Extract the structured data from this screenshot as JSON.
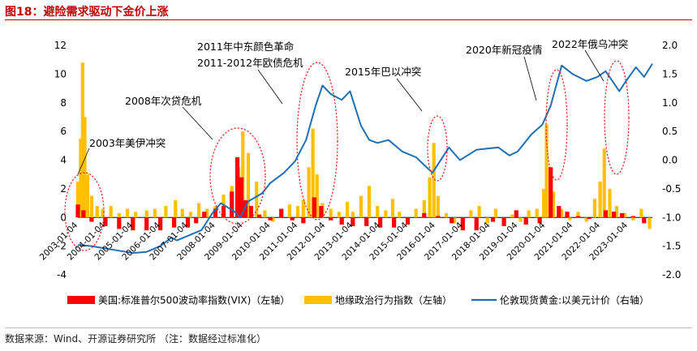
{
  "figure_title": "图18：避险需求驱动下金价上涨",
  "source_note": "数据来源：Wind、开源证券研究所 （注：数据经过标准化）",
  "colors": {
    "vix": "#ff0000",
    "gpr": "#ffc000",
    "gold": "#1f6fb4",
    "annotation_ellipse": "#e0201c",
    "title": "#c00000"
  },
  "chart_data": {
    "type": "bar+line",
    "title": "避险需求驱动下金价上涨",
    "left_axis": {
      "range": [
        -4,
        12
      ],
      "ticks": [
        12,
        10,
        8,
        6,
        4,
        2,
        0,
        -2,
        -4
      ]
    },
    "right_axis": {
      "range": [
        -2.0,
        2.0
      ],
      "ticks": [
        "2.0",
        "1.5",
        "1.0",
        "0.5",
        "0.0",
        "-0.5",
        "-1.0",
        "-1.5",
        "-2.0"
      ]
    },
    "x_range": [
      2003.0,
      2023.9
    ],
    "x_tick_labels": [
      "2003-01-04",
      "2004-01-04",
      "2005-01-04",
      "2006-01-04",
      "2007-01-04",
      "2008-01-04",
      "2009-01-04",
      "2010-01-04",
      "2011-01-04",
      "2012-01-04",
      "2013-01-04",
      "2014-01-04",
      "2015-01-04",
      "2016-01-04",
      "2017-01-04",
      "2018-01-04",
      "2019-01-04",
      "2020-01-04",
      "2021-01-04",
      "2022-01-04",
      "2023-01-04"
    ],
    "legend": [
      {
        "key": "vix",
        "label": "美国:标准普尔500波动率指数(VIX)（左轴）"
      },
      {
        "key": "gpr",
        "label": "地缘政治行为指数（左轴）"
      },
      {
        "key": "gold",
        "label": "伦敦现货黄金:以美元计价（右轴）"
      }
    ],
    "series": [
      {
        "name": "伦敦现货黄金:以美元计价（右轴）",
        "axis": "right",
        "style": "line",
        "x": [
          2003.0,
          2003.5,
          2004.0,
          2004.5,
          2005.0,
          2005.5,
          2006.0,
          2006.4,
          2006.6,
          2007.0,
          2007.5,
          2007.9,
          2008.2,
          2008.7,
          2008.9,
          2009.2,
          2009.7,
          2010.0,
          2010.5,
          2010.9,
          2011.3,
          2011.65,
          2011.9,
          2012.2,
          2012.6,
          2012.9,
          2013.3,
          2013.6,
          2013.9,
          2014.3,
          2014.8,
          2015.3,
          2015.9,
          2016.5,
          2016.9,
          2017.5,
          2017.9,
          2018.3,
          2018.7,
          2019.0,
          2019.5,
          2019.9,
          2020.2,
          2020.6,
          2021.0,
          2021.5,
          2021.9,
          2022.2,
          2022.7,
          2022.9,
          2023.3,
          2023.6,
          2023.9
        ],
        "values": [
          -1.48,
          -1.5,
          -1.54,
          -1.58,
          -1.62,
          -1.6,
          -1.5,
          -1.35,
          -1.4,
          -1.32,
          -1.22,
          -0.92,
          -0.75,
          -0.9,
          -1.0,
          -0.72,
          -0.58,
          -0.4,
          -0.22,
          -0.02,
          0.35,
          0.95,
          1.3,
          1.15,
          1.05,
          1.2,
          0.6,
          0.35,
          0.3,
          0.35,
          0.15,
          0.05,
          -0.22,
          0.22,
          0.0,
          0.18,
          0.2,
          0.22,
          0.08,
          0.15,
          0.45,
          0.62,
          0.95,
          1.65,
          1.5,
          1.38,
          1.45,
          1.55,
          1.2,
          1.35,
          1.62,
          1.45,
          1.68
        ]
      },
      {
        "name": "美国:标准普尔500波动率指数(VIX)（左轴）",
        "axis": "left",
        "style": "bar",
        "x": [
          2003.0,
          2003.2,
          2003.5,
          2004.0,
          2004.5,
          2005.0,
          2005.5,
          2006.0,
          2006.5,
          2007.0,
          2007.3,
          2007.6,
          2008.0,
          2008.3,
          2008.6,
          2008.8,
          2008.95,
          2009.1,
          2009.3,
          2009.6,
          2010.0,
          2010.4,
          2010.8,
          2011.2,
          2011.6,
          2011.85,
          2012.2,
          2012.6,
          2013.0,
          2013.5,
          2014.0,
          2014.5,
          2015.0,
          2015.6,
          2016.1,
          2016.6,
          2017.0,
          2017.5,
          2018.1,
          2018.5,
          2018.95,
          2019.3,
          2019.8,
          2020.2,
          2020.5,
          2020.8,
          2021.2,
          2021.6,
          2022.2,
          2022.5,
          2022.8,
          2023.2,
          2023.6
        ],
        "values": [
          0.9,
          0.5,
          -0.3,
          -0.6,
          -0.8,
          -0.9,
          -0.9,
          -0.9,
          -0.7,
          -0.7,
          -0.4,
          0.4,
          0.6,
          0.8,
          1.8,
          4.2,
          2.8,
          1.2,
          0.8,
          0.2,
          -0.2,
          0.6,
          -0.2,
          -0.4,
          1.4,
          0.8,
          -0.2,
          -0.5,
          -0.6,
          -0.6,
          -0.7,
          -0.7,
          -0.5,
          0.3,
          0.1,
          -0.4,
          -0.9,
          -0.9,
          -0.3,
          -0.6,
          0.5,
          -0.5,
          -0.4,
          3.5,
          0.8,
          0.4,
          0.1,
          -0.1,
          0.5,
          0.4,
          0.3,
          0.1,
          -0.4
        ]
      },
      {
        "name": "地缘政治行为指数（左轴）",
        "axis": "left",
        "style": "bar",
        "x": [
          2003.0,
          2003.1,
          2003.17,
          2003.25,
          2003.35,
          2003.5,
          2003.7,
          2003.9,
          2004.2,
          2004.5,
          2004.8,
          2005.1,
          2005.5,
          2005.8,
          2006.2,
          2006.55,
          2006.8,
          2007.1,
          2007.4,
          2007.7,
          2008.0,
          2008.3,
          2008.6,
          2008.85,
          2009.0,
          2009.2,
          2009.5,
          2009.8,
          2010.1,
          2010.4,
          2010.7,
          2011.0,
          2011.2,
          2011.4,
          2011.55,
          2011.7,
          2011.9,
          2012.2,
          2012.5,
          2012.8,
          2013.0,
          2013.3,
          2013.6,
          2013.9,
          2014.2,
          2014.45,
          2014.7,
          2015.0,
          2015.3,
          2015.6,
          2015.8,
          2015.95,
          2016.1,
          2016.4,
          2016.7,
          2017.0,
          2017.3,
          2017.6,
          2017.9,
          2018.2,
          2018.5,
          2018.8,
          2019.1,
          2019.4,
          2019.7,
          2019.95,
          2020.05,
          2020.3,
          2020.6,
          2020.9,
          2021.2,
          2021.5,
          2021.8,
          2022.0,
          2022.15,
          2022.35,
          2022.6,
          2022.9,
          2023.2,
          2023.5,
          2023.8
        ],
        "values": [
          2.5,
          5.5,
          10.8,
          7.0,
          3.0,
          1.5,
          0.8,
          0.6,
          0.8,
          0.3,
          0.6,
          0.4,
          0.5,
          0.6,
          0.8,
          1.2,
          0.6,
          0.4,
          1.0,
          0.6,
          0.8,
          1.6,
          2.2,
          3.5,
          6.0,
          4.5,
          2.5,
          0.5,
          -0.3,
          0.5,
          0.9,
          0.8,
          1.2,
          3.5,
          6.2,
          3.0,
          1.0,
          0.6,
          0.4,
          1.1,
          0.4,
          1.5,
          2.2,
          0.8,
          0.5,
          1.3,
          0.4,
          -0.3,
          0.6,
          1.2,
          2.8,
          5.2,
          1.5,
          0.3,
          -0.4,
          -0.2,
          0.5,
          0.8,
          -0.4,
          0.6,
          -0.5,
          0.2,
          -0.3,
          0.5,
          0.6,
          2.0,
          6.5,
          1.8,
          0.6,
          -0.2,
          0.4,
          -0.3,
          1.3,
          2.5,
          4.8,
          2.0,
          0.8,
          0.3,
          -0.2,
          0.6,
          -0.8
        ]
      }
    ],
    "annotations": [
      {
        "label": "2003年美伊冲突"
      },
      {
        "label": "2008年次贷危机"
      },
      {
        "label": "2011年中东颜色革命"
      },
      {
        "label": "2011-2012年欧债危机"
      },
      {
        "label": "2015年巴以冲突"
      },
      {
        "label": "2020年新冠疫情"
      },
      {
        "label": "2022年俄乌冲突"
      }
    ]
  }
}
